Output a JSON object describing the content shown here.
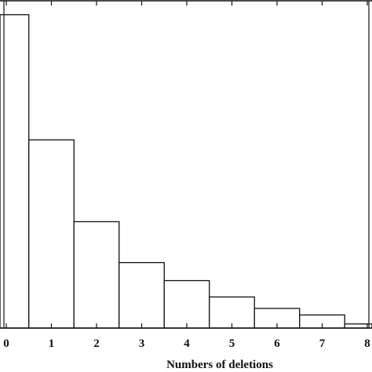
{
  "chart_data": {
    "type": "bar",
    "title": "",
    "xlabel": "Numbers of deletions",
    "ylabel": "",
    "categories": [
      "0",
      "1",
      "2",
      "3",
      "4",
      "5",
      "6",
      "7",
      "8"
    ],
    "values": [
      383,
      230,
      130,
      80,
      58,
      38,
      24,
      16,
      5
    ],
    "ylim": [
      0,
      400
    ],
    "grid": false,
    "colors": {
      "bar_fill": "#ffffff",
      "bar_stroke": "#111111",
      "axis": "#111111"
    }
  }
}
